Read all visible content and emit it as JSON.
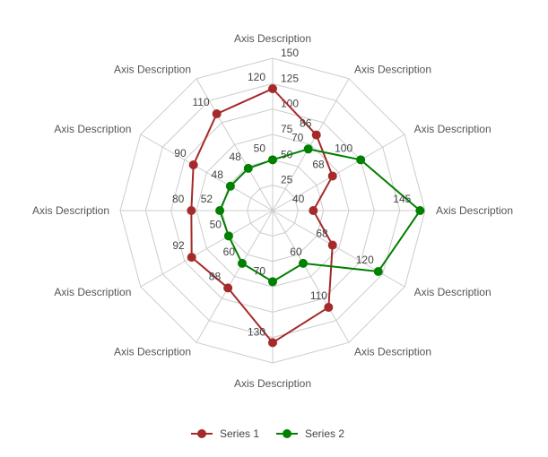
{
  "chart_data": {
    "type": "radar",
    "categories": [
      "Axis Description",
      "Axis Description",
      "Axis Description",
      "Axis Description",
      "Axis Description",
      "Axis Description",
      "Axis Description",
      "Axis Description",
      "Axis Description",
      "Axis Description",
      "Axis Description",
      "Axis Description"
    ],
    "rlim": [
      0,
      150
    ],
    "scale_ticks": [
      25,
      50,
      75,
      100,
      125,
      150
    ],
    "grid": true,
    "legend_position": "bottom",
    "series": [
      {
        "name": "Series 1",
        "color": "#a52a2a",
        "values": [
          120,
          86,
          68,
          40,
          68,
          110,
          130,
          88,
          92,
          80,
          90,
          110
        ]
      },
      {
        "name": "Series 2",
        "color": "#008000",
        "values": [
          50,
          70,
          100,
          145,
          120,
          60,
          70,
          60,
          50,
          52,
          48,
          48
        ]
      }
    ]
  }
}
